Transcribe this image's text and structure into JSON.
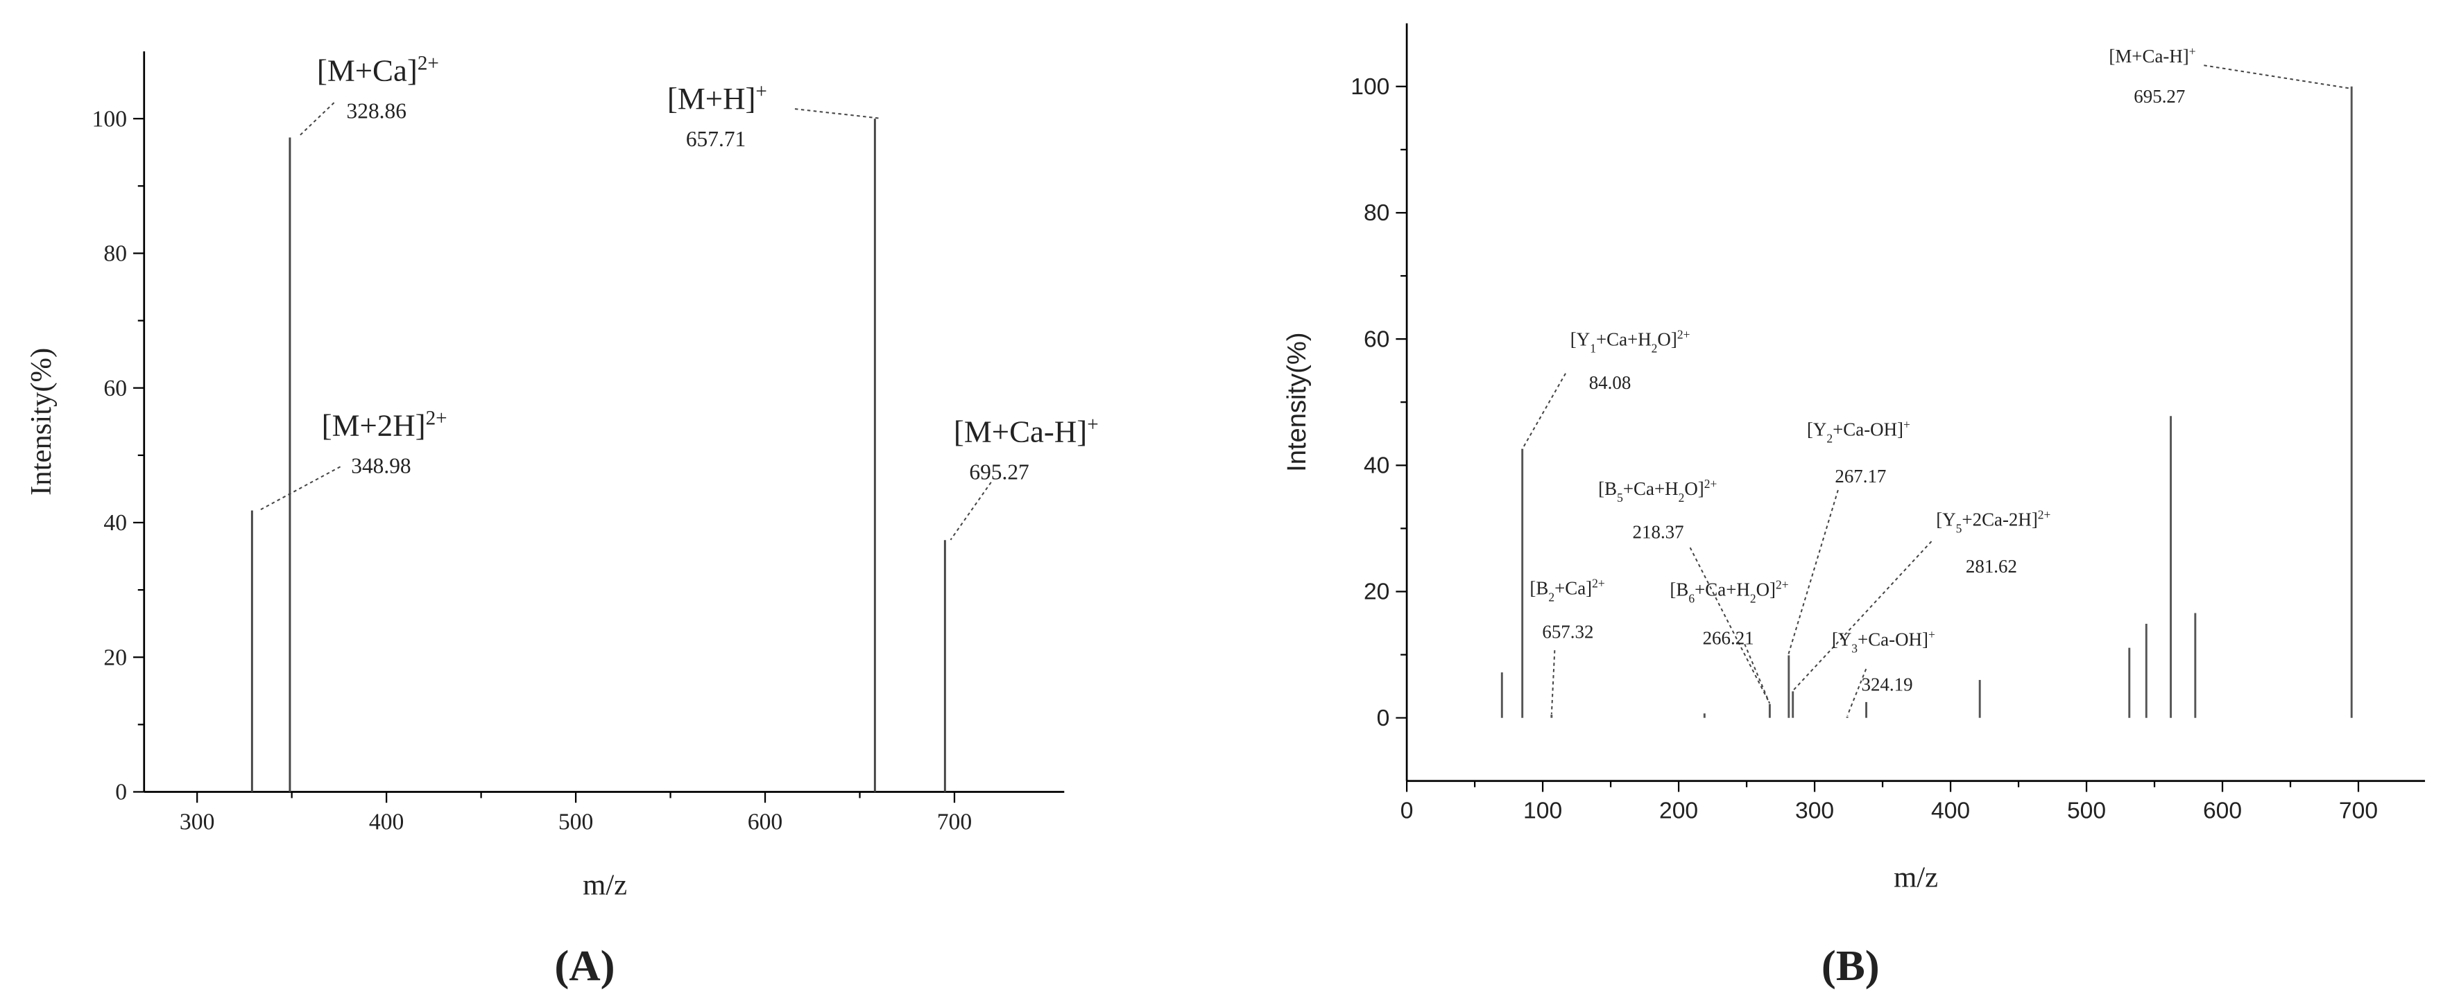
{
  "chart_data": [
    {
      "type": "stick",
      "title": "(A)",
      "x_label": "m/z",
      "y_label": "Intensity(%)",
      "xlim": [
        272,
        758
      ],
      "xticks": [
        300,
        400,
        500,
        600,
        700
      ],
      "ylim": [
        0,
        110
      ],
      "yticks": [
        0,
        20,
        40,
        60,
        80,
        100
      ],
      "series": [
        {
          "color": "#444444",
          "x": [
            329,
            349,
            658,
            695
          ],
          "values": [
            41.8,
            97.2,
            100,
            37.4
          ]
        }
      ],
      "annotations": [
        {
          "label": [
            {
              "text": "[M+Ca]"
            },
            {
              "text": "2+",
              "shift": "sup"
            }
          ],
          "value": 328.86
        },
        {
          "label": [
            {
              "text": "[M+H]"
            },
            {
              "text": "+",
              "shift": "sup"
            }
          ],
          "value": 657.71
        },
        {
          "label": [
            {
              "text": "[M+2H]"
            },
            {
              "text": "2+",
              "shift": "sup"
            }
          ],
          "value": 348.98
        },
        {
          "label": [
            {
              "text": "[M+Ca-H]"
            },
            {
              "text": "+",
              "shift": "sup"
            }
          ],
          "value": 695.27
        }
      ]
    },
    {
      "type": "stick",
      "title": "(B)",
      "x_label": "m/z",
      "y_label": "Intensity(%)",
      "xlim": [
        0,
        749
      ],
      "xticks": [
        0,
        100,
        200,
        300,
        400,
        500,
        600,
        700
      ],
      "ylim": [
        -10,
        110
      ],
      "yticks": [
        0,
        20,
        40,
        60,
        80,
        100
      ],
      "series": [
        {
          "color": "#555555",
          "x": [
            70,
            85,
            106.5,
            219,
            267,
            281,
            284,
            324,
            338,
            421.5,
            531.5,
            544,
            562,
            580,
            695
          ],
          "values": [
            7.2,
            42.6,
            0.5,
            0.7,
            2.2,
            9.9,
            4.2,
            0.2,
            2.5,
            6,
            11.1,
            14.9,
            47.8,
            16.6,
            100
          ]
        }
      ],
      "annotations": [
        {
          "label": [
            {
              "text": "[M+Ca-H]"
            },
            {
              "text": "+",
              "shift": "sup"
            }
          ],
          "value": 695.27
        },
        {
          "label": [
            {
              "text": "[Y"
            },
            {
              "text": "1",
              "shift": "sub"
            },
            {
              "text": "+Ca+H"
            },
            {
              "text": "2",
              "shift": "sub"
            },
            {
              "text": "O]"
            },
            {
              "text": "2+",
              "shift": "sup"
            }
          ],
          "value": 84.08
        },
        {
          "label": [
            {
              "text": "[Y"
            },
            {
              "text": "2",
              "shift": "sub"
            },
            {
              "text": "+Ca-OH]"
            },
            {
              "text": "+",
              "shift": "sup"
            }
          ],
          "value": 267.17
        },
        {
          "label": [
            {
              "text": "[B"
            },
            {
              "text": "5",
              "shift": "sub"
            },
            {
              "text": "+Ca+H"
            },
            {
              "text": "2",
              "shift": "sub"
            },
            {
              "text": "O]"
            },
            {
              "text": "2+",
              "shift": "sup"
            }
          ],
          "value": 218.37
        },
        {
          "label": [
            {
              "text": "[Y"
            },
            {
              "text": "5",
              "shift": "sub"
            },
            {
              "text": "+2Ca-2H]"
            },
            {
              "text": "2+",
              "shift": "sup"
            }
          ],
          "value": 281.62
        },
        {
          "label": [
            {
              "text": "[B"
            },
            {
              "text": "2",
              "shift": "sub"
            },
            {
              "text": "+Ca]"
            },
            {
              "text": "2+",
              "shift": "sup"
            }
          ],
          "value": 657.32
        },
        {
          "label": [
            {
              "text": "[B"
            },
            {
              "text": "6",
              "shift": "sub"
            },
            {
              "text": "+Ca+H"
            },
            {
              "text": "2",
              "shift": "sub"
            },
            {
              "text": "O]"
            },
            {
              "text": "2+",
              "shift": "sup"
            }
          ],
          "value": 266.21
        },
        {
          "label": [
            {
              "text": "[Y"
            },
            {
              "text": "3",
              "shift": "sub"
            },
            {
              "text": "+Ca-OH]"
            },
            {
              "text": "+",
              "shift": "sup"
            }
          ],
          "value": 324.19
        }
      ]
    }
  ]
}
